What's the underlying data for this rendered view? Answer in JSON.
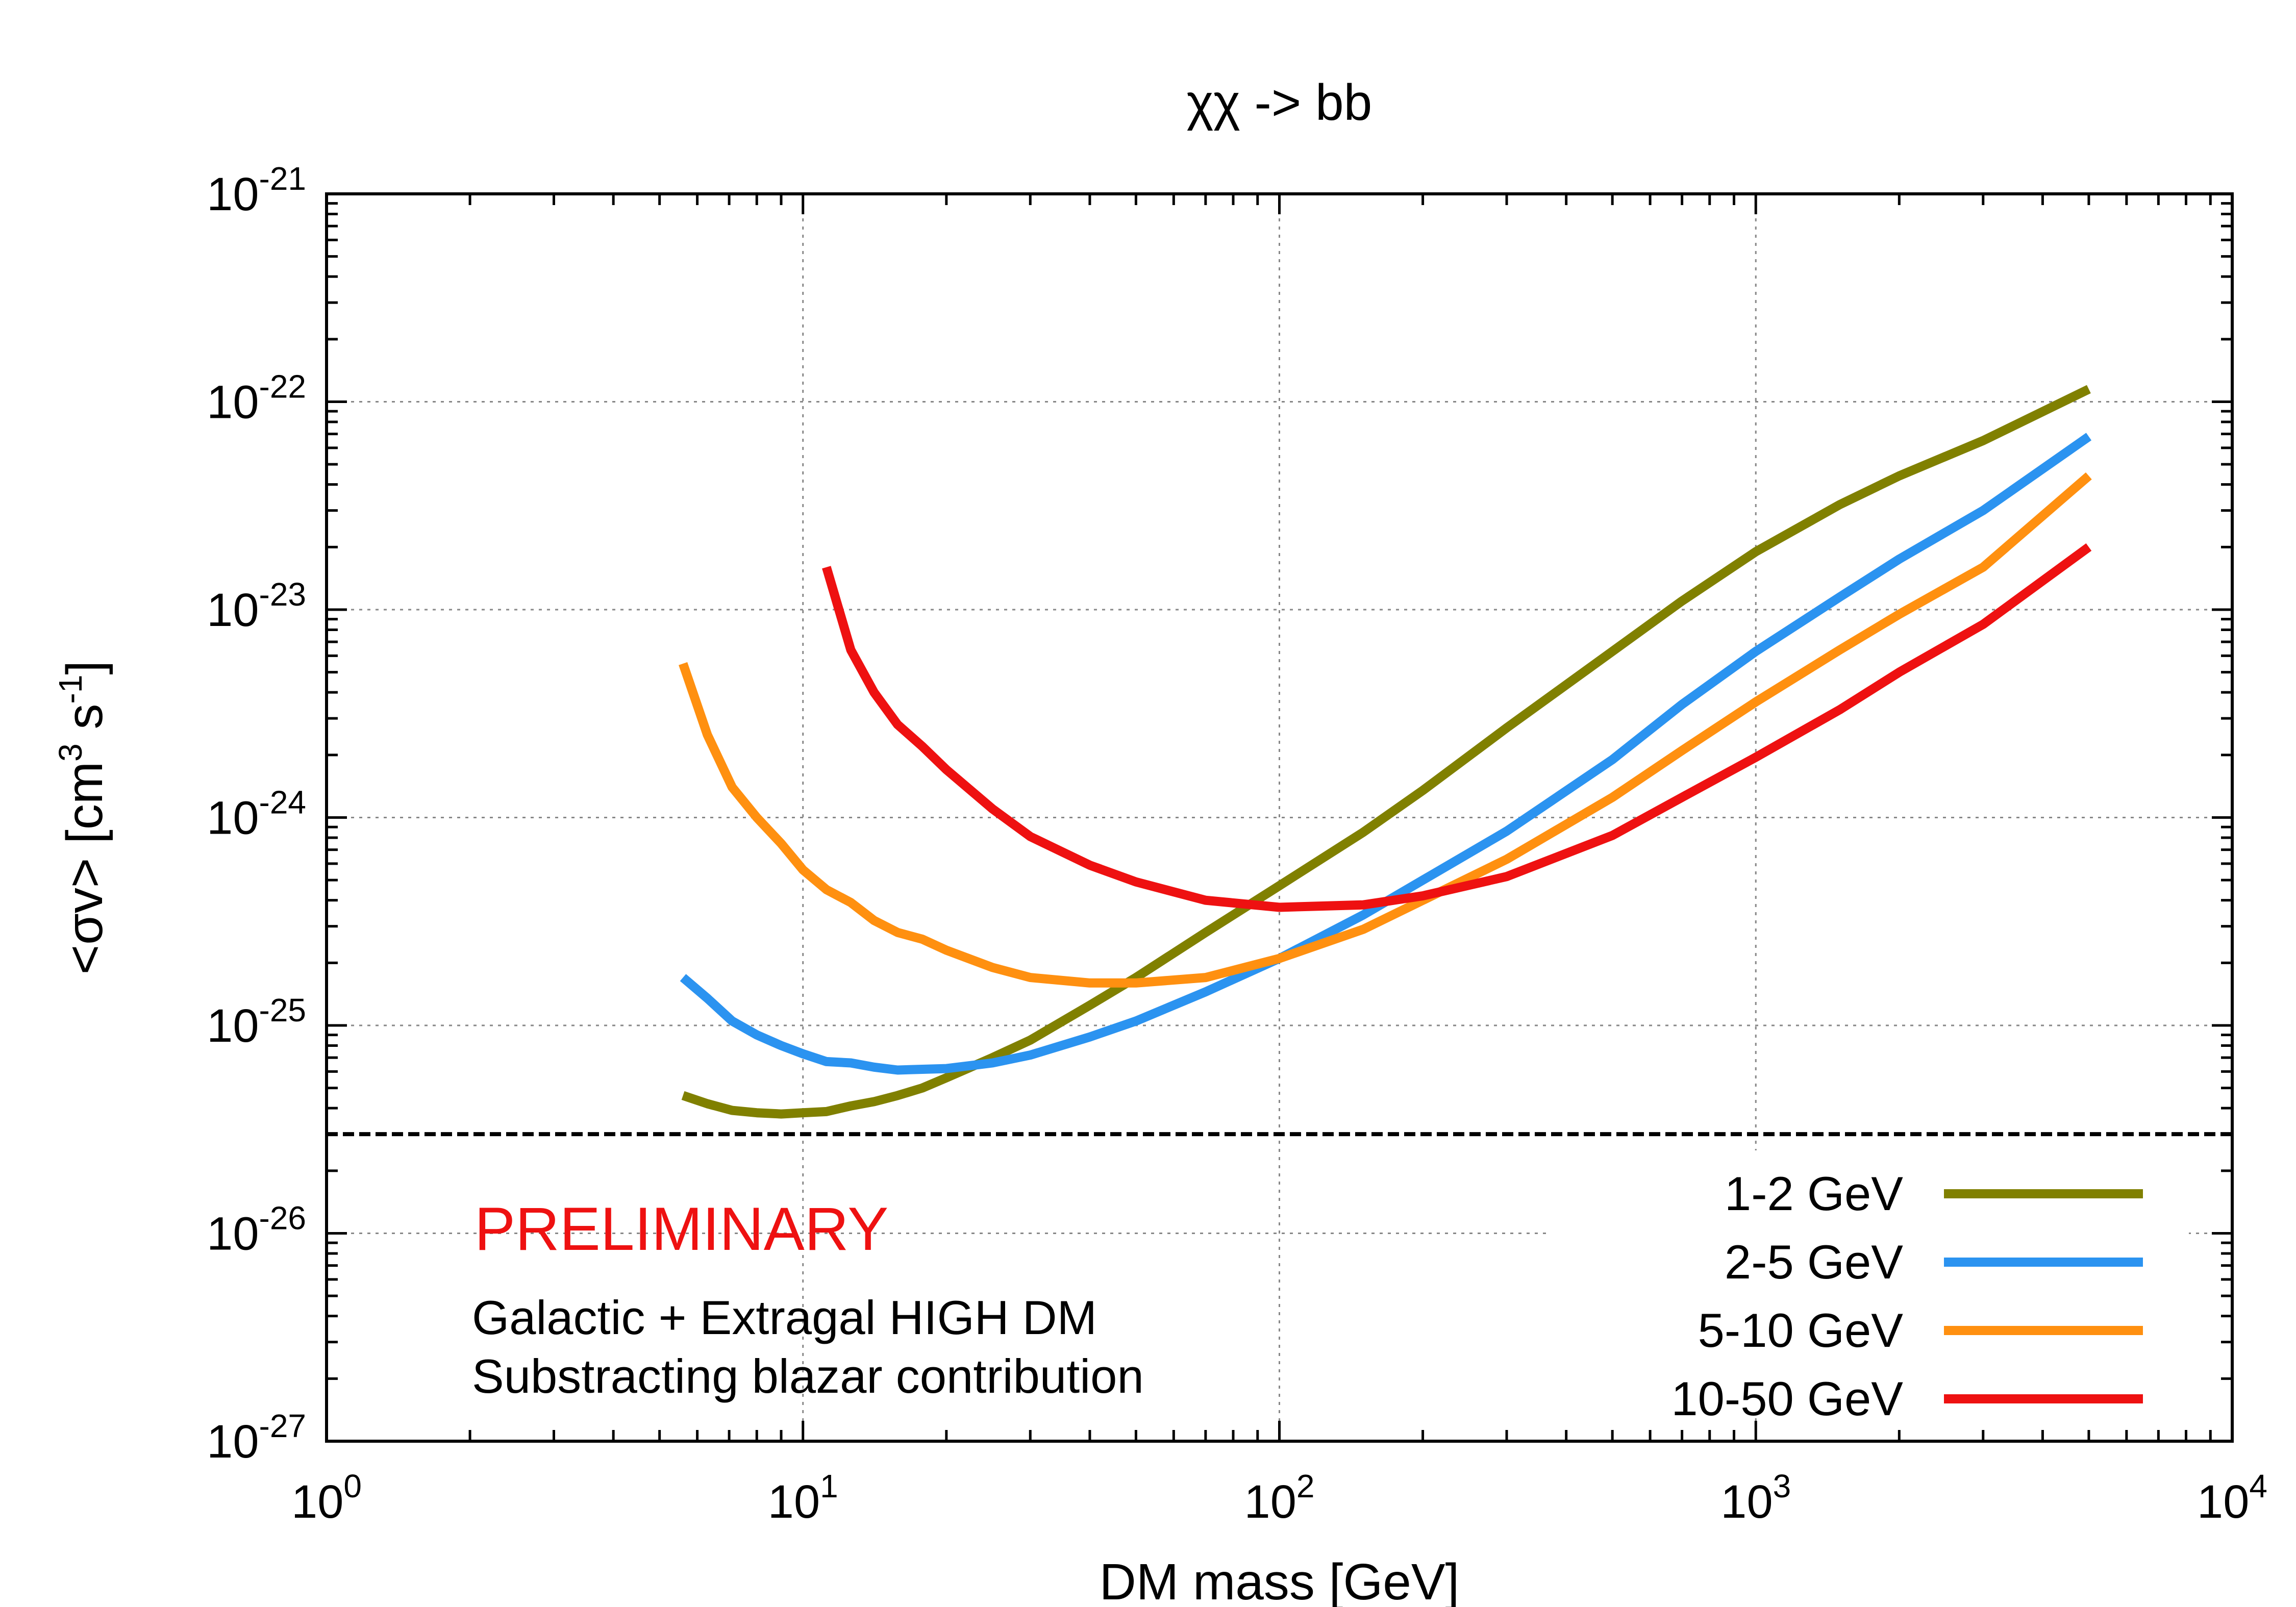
{
  "chart_data": {
    "type": "line",
    "title": "χχ -> bb",
    "xlabel": "DM mass [GeV]",
    "ylabel": "<σv> [cm³ s⁻¹]",
    "ylabel_parts": {
      "prefix": "<σv> [cm",
      "exp1": "3",
      "mid": " s",
      "exp2": "-1",
      "suffix": "]"
    },
    "x_scale": "log",
    "y_scale": "log",
    "xlim": [
      1,
      10000
    ],
    "ylim": [
      1e-27,
      1e-21
    ],
    "grid": true,
    "legend_position": "bottom-right",
    "x_ticks": [
      {
        "value": 1,
        "base": "10",
        "exp": "0"
      },
      {
        "value": 10,
        "base": "10",
        "exp": "1"
      },
      {
        "value": 100,
        "base": "10",
        "exp": "2"
      },
      {
        "value": 1000,
        "base": "10",
        "exp": "3"
      },
      {
        "value": 10000,
        "base": "10",
        "exp": "4"
      }
    ],
    "y_ticks": [
      {
        "value": 1e-21,
        "base": "10",
        "exp": "-21"
      },
      {
        "value": 1e-22,
        "base": "10",
        "exp": "-22"
      },
      {
        "value": 1e-23,
        "base": "10",
        "exp": "-23"
      },
      {
        "value": 1e-24,
        "base": "10",
        "exp": "-24"
      },
      {
        "value": 1e-25,
        "base": "10",
        "exp": "-25"
      },
      {
        "value": 1e-26,
        "base": "10",
        "exp": "-26"
      },
      {
        "value": 1e-27,
        "base": "10",
        "exp": "-27"
      }
    ],
    "reference_line": {
      "y": 3e-26,
      "style": "dashed",
      "color": "#000000"
    },
    "series": [
      {
        "name": "1-2 GeV",
        "color": "#808000",
        "x": [
          5.6,
          6.3,
          7.1,
          8.0,
          9.0,
          10.0,
          11.2,
          12.6,
          14.1,
          15.8,
          17.8,
          20,
          25,
          30,
          40,
          50,
          70,
          100,
          150,
          200,
          300,
          500,
          700,
          1000,
          1500,
          2000,
          3000,
          5000
        ],
        "y": [
          4.6e-26,
          4.2e-26,
          3.9e-26,
          3.8e-26,
          3.75e-26,
          3.8e-26,
          3.85e-26,
          4.1e-26,
          4.3e-26,
          4.6e-26,
          5e-26,
          5.6e-26,
          7e-26,
          8.5e-26,
          1.25e-25,
          1.7e-25,
          2.8e-25,
          4.7e-25,
          8.5e-25,
          1.35e-24,
          2.7e-24,
          6.3e-24,
          1.1e-23,
          1.9e-23,
          3.2e-23,
          4.4e-23,
          6.5e-23,
          1.15e-22
        ]
      },
      {
        "name": "2-5 GeV",
        "color": "#2b93f0",
        "x": [
          5.6,
          6.3,
          7.1,
          8.0,
          9.0,
          10.0,
          11.2,
          12.6,
          14.1,
          15.8,
          17.8,
          20,
          25,
          30,
          40,
          50,
          70,
          100,
          150,
          200,
          300,
          500,
          700,
          1000,
          1500,
          2000,
          3000,
          5000
        ],
        "y": [
          1.7e-25,
          1.35e-25,
          1.05e-25,
          9e-26,
          8e-26,
          7.3e-26,
          6.7e-26,
          6.6e-26,
          6.3e-26,
          6.1e-26,
          6.15e-26,
          6.2e-26,
          6.6e-26,
          7.2e-26,
          8.8e-26,
          1.05e-25,
          1.45e-25,
          2.1e-25,
          3.4e-25,
          5e-25,
          8.6e-25,
          1.9e-24,
          3.5e-24,
          6.3e-24,
          1.15e-23,
          1.75e-23,
          3e-23,
          6.8e-23
        ]
      },
      {
        "name": "5-10 GeV",
        "color": "#ff9010",
        "x": [
          5.6,
          6.3,
          7.1,
          8.0,
          9.0,
          10.0,
          11.2,
          12.6,
          14.1,
          15.8,
          17.8,
          20,
          25,
          30,
          40,
          50,
          70,
          100,
          150,
          200,
          300,
          500,
          700,
          1000,
          1500,
          2000,
          3000,
          5000
        ],
        "y": [
          5.5e-24,
          2.5e-24,
          1.4e-24,
          1e-24,
          7.5e-25,
          5.6e-25,
          4.5e-25,
          3.9e-25,
          3.2e-25,
          2.8e-25,
          2.6e-25,
          2.3e-25,
          1.9e-25,
          1.7e-25,
          1.6e-25,
          1.6e-25,
          1.7e-25,
          2.1e-25,
          2.9e-25,
          4e-25,
          6.3e-25,
          1.25e-24,
          2.1e-24,
          3.6e-24,
          6.4e-24,
          9.5e-24,
          1.6e-23,
          4.4e-23
        ]
      },
      {
        "name": "10-50 GeV",
        "color": "#ee1111",
        "x": [
          11.2,
          12.6,
          14.1,
          15.8,
          17.8,
          20,
          25,
          30,
          40,
          50,
          70,
          100,
          150,
          200,
          300,
          500,
          700,
          1000,
          1500,
          2000,
          3000,
          5000
        ],
        "y": [
          1.6e-23,
          6.4e-24,
          4e-24,
          2.8e-24,
          2.2e-24,
          1.7e-24,
          1.1e-24,
          8.1e-25,
          5.9e-25,
          4.9e-25,
          4e-25,
          3.7e-25,
          3.8e-25,
          4.2e-25,
          5.2e-25,
          8.2e-25,
          1.25e-24,
          1.95e-24,
          3.3e-24,
          5e-24,
          8.5e-24,
          2e-23
        ]
      }
    ],
    "annotations": {
      "preliminary": "PRELIMINARY",
      "line1": "Galactic + Extragal HIGH DM",
      "line2": "Substracting blazar contribution"
    }
  }
}
